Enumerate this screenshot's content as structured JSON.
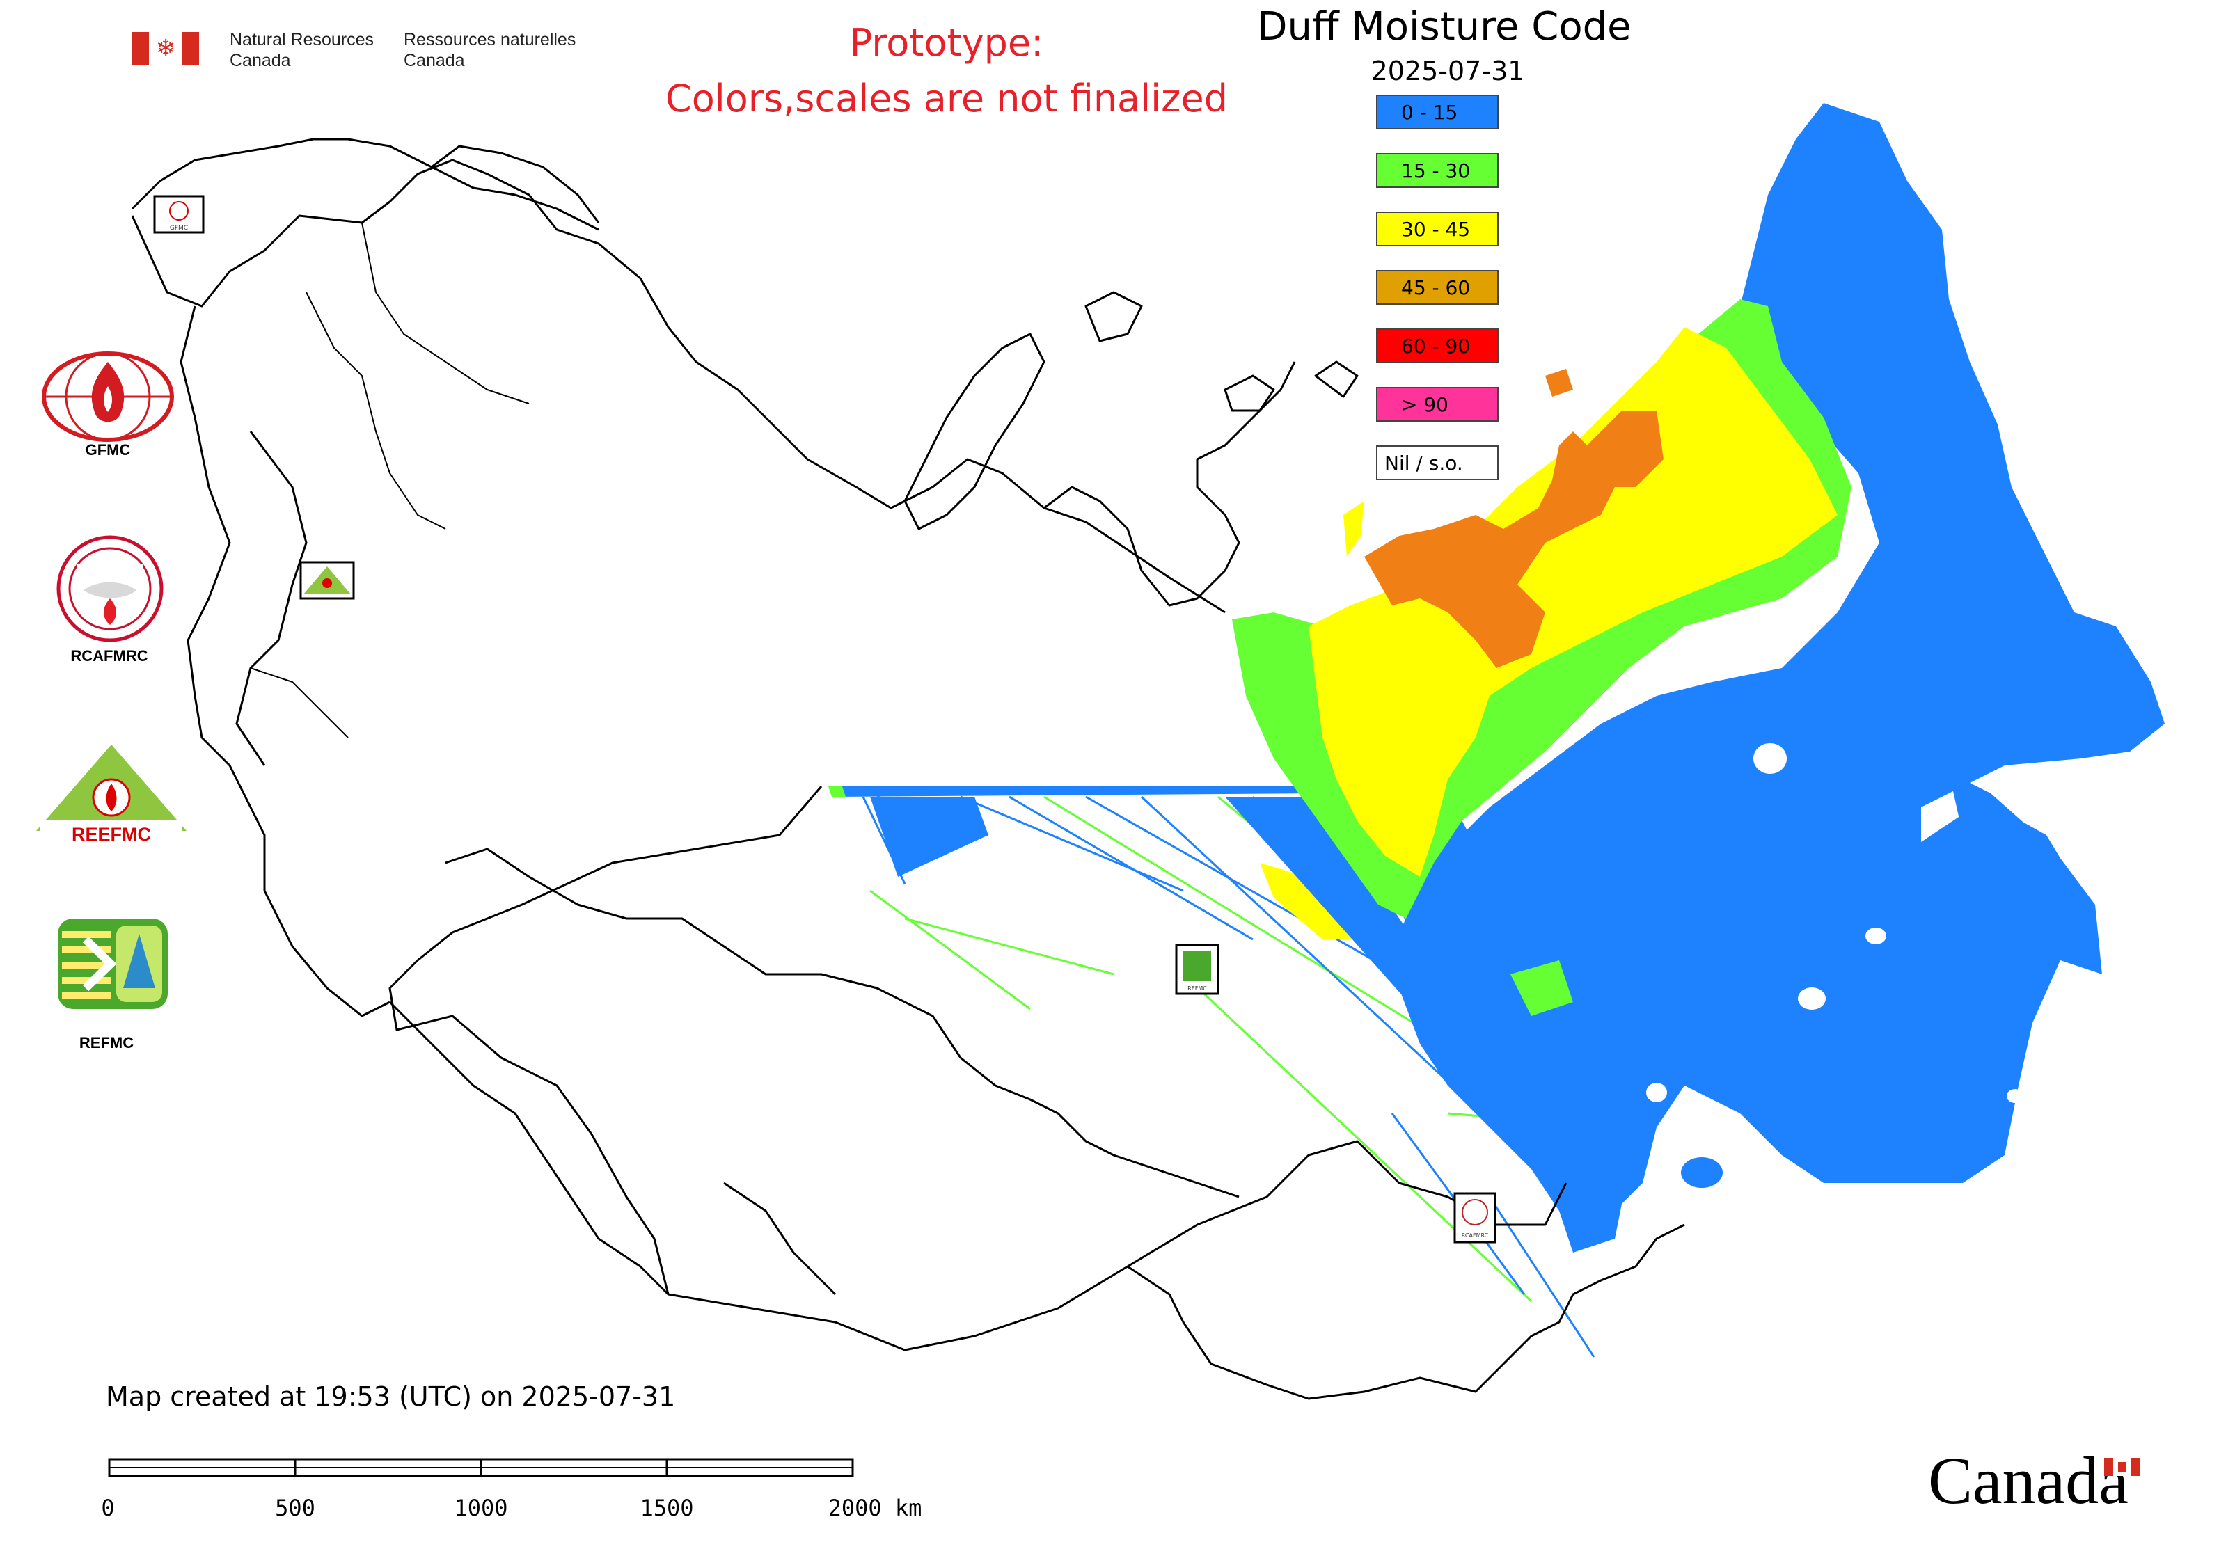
{
  "nrcan": {
    "en_line1": "Natural Resources",
    "en_line2": "Canada",
    "fr_line1": "Ressources naturelles",
    "fr_line2": "Canada"
  },
  "notice": {
    "line1": "Prototype:",
    "line2": "Colors,scales are not finalized"
  },
  "title": "Duff Moisture Code",
  "date": "2025-07-31",
  "legend": [
    {
      "label": "0 - 15",
      "color": "#1e82ff"
    },
    {
      "label": "15 - 30",
      "color": "#66ff33"
    },
    {
      "label": "30 - 45",
      "color": "#ffff00"
    },
    {
      "label": "45 - 60",
      "color": "#e0a000"
    },
    {
      "label": "60 - 90",
      "color": "#ff0000"
    },
    {
      "label": "> 90",
      "color": "#ff3399"
    },
    {
      "label": "Nil / s.o.",
      "color": "#ffffff"
    }
  ],
  "map_colors": {
    "dmc_0_15": "#1e82ff",
    "dmc_15_30": "#66ff33",
    "dmc_30_45": "#ffff00",
    "dmc_45_60": "#f07f16",
    "boundary": "#000000",
    "lake": "#ffffff"
  },
  "logos": [
    {
      "name": "GFMC",
      "caption": "GFMC",
      "icon": "fire-globe-icon"
    },
    {
      "name": "RCAFMRC",
      "caption": "RCAFMRC",
      "icon": "fire-round-seal-icon"
    },
    {
      "name": "REEFMC",
      "caption": "REEFMC",
      "icon": "fire-triangle-icon",
      "logo_text": "REEFMC"
    },
    {
      "name": "REFMC",
      "caption": "REFMC",
      "icon": "sigma-tree-icon"
    }
  ],
  "map_labels": {
    "gfmc_box": "GFMC",
    "refmc_box": "REFMC",
    "rcafmrc_box": "RCAFMRC"
  },
  "footer": {
    "created": "Map created at 19:53 (UTC) on 2025-07-31",
    "scale_ticks": [
      "0",
      "500",
      "1000",
      "1500",
      "2000 km"
    ],
    "wordmark": "Canada"
  }
}
